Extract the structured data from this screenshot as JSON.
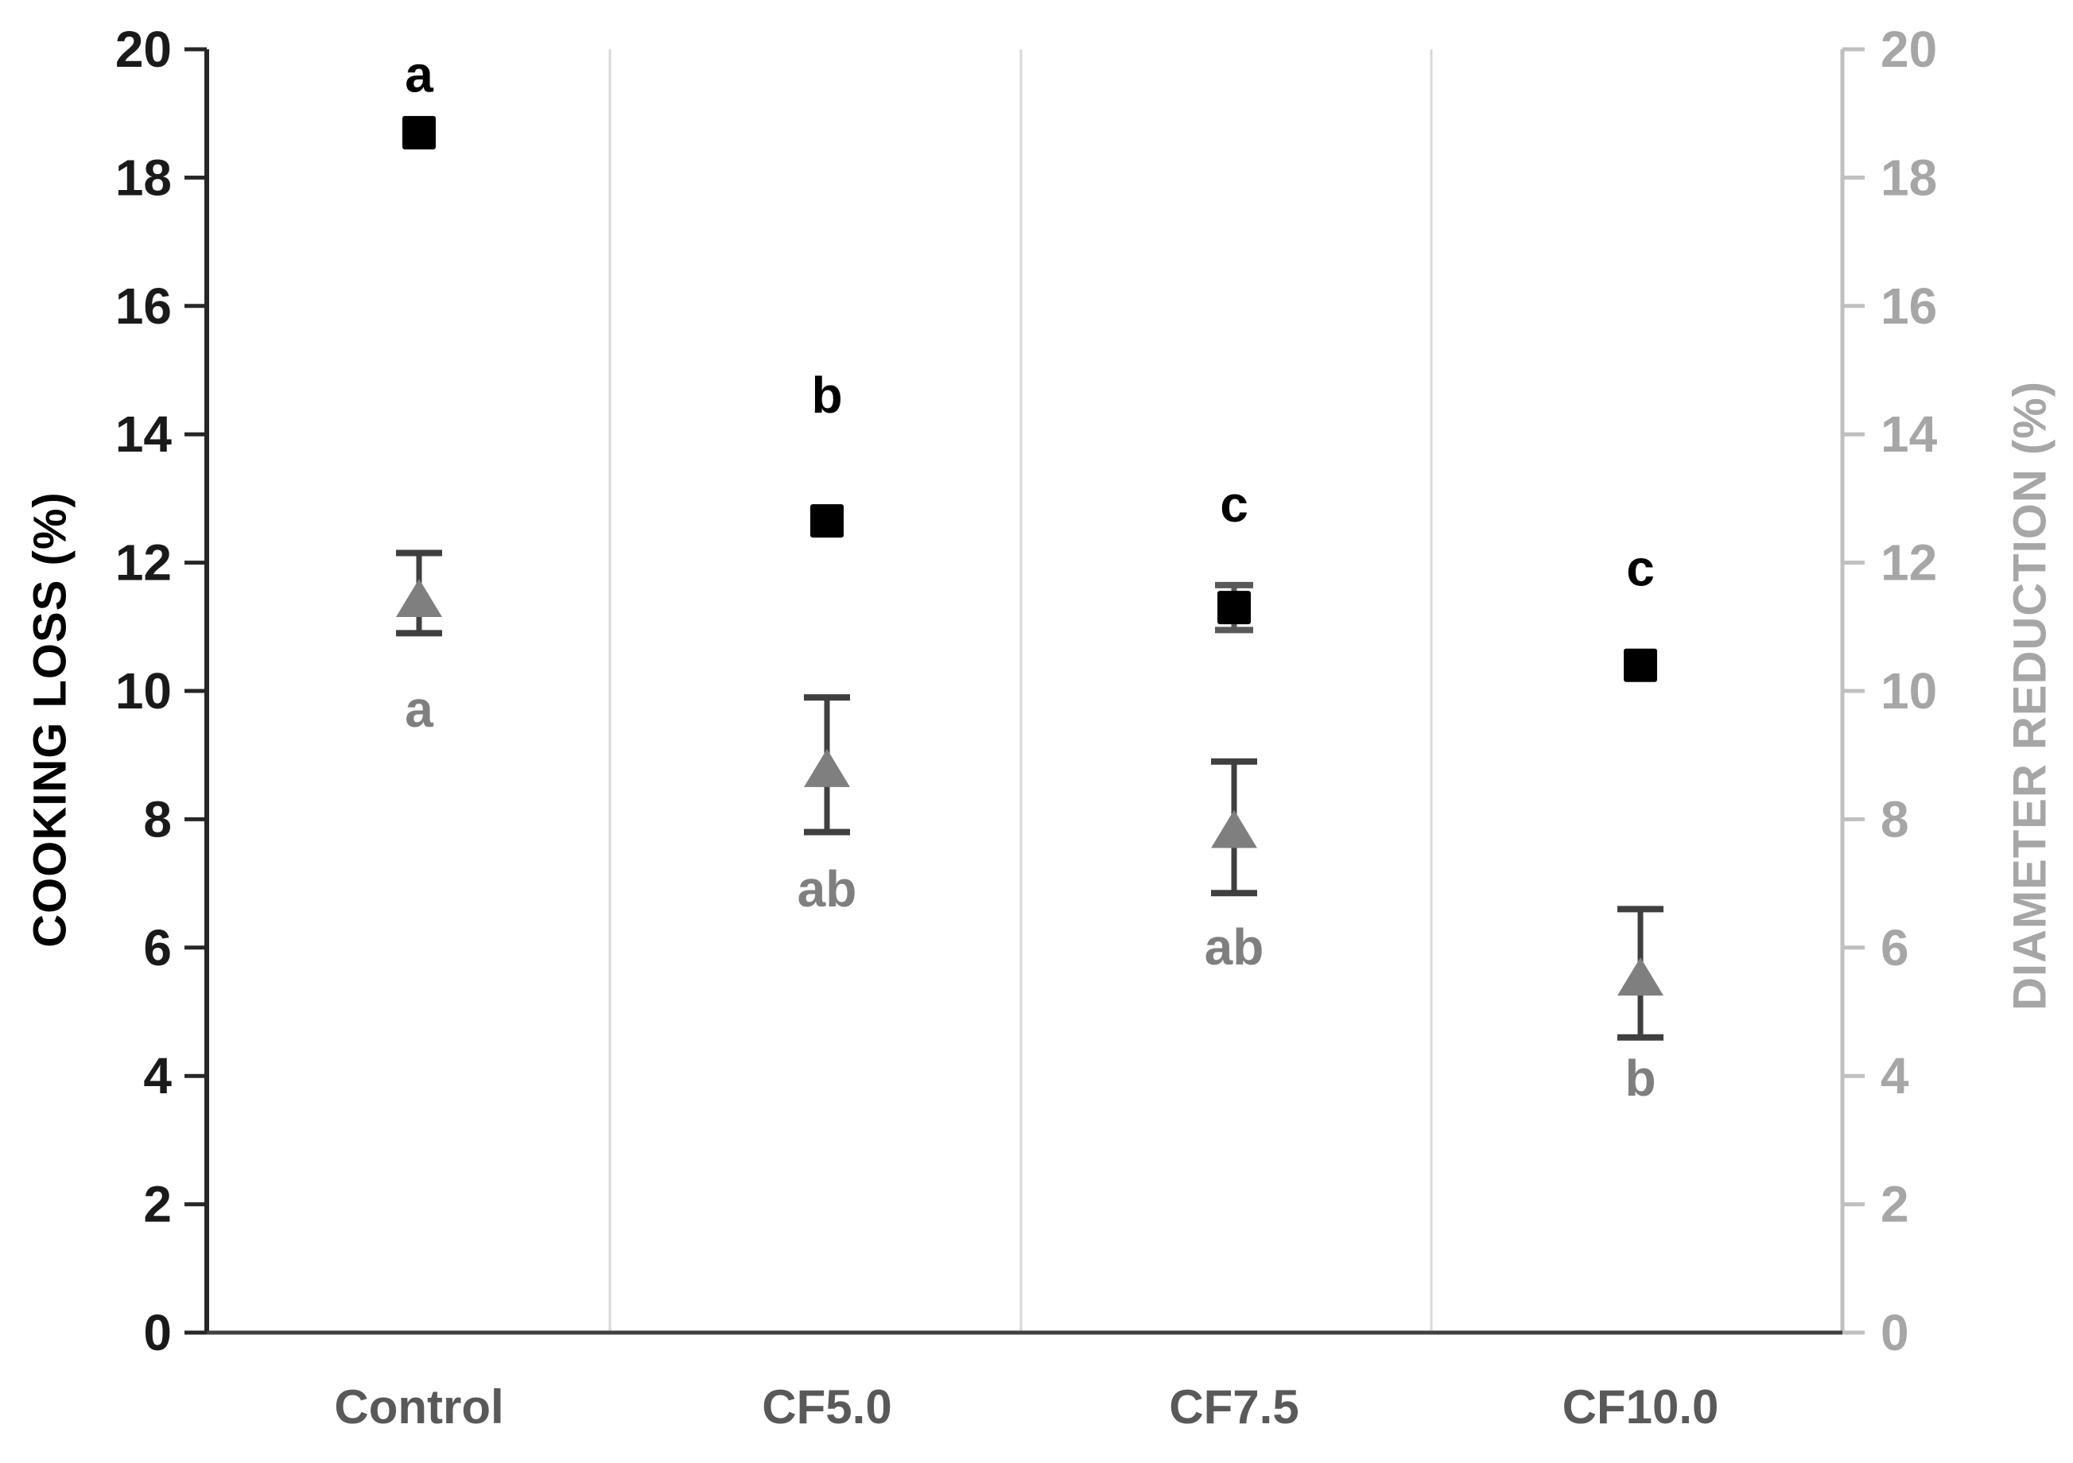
{
  "page": {
    "background": "#ffffff"
  },
  "chart_data": {
    "type": "scatter",
    "title": "",
    "categories": [
      "Control",
      "CF5.0",
      "CF7.5",
      "CF10.0"
    ],
    "category_label_color": "#595959",
    "separator_color": "#d9d9d9",
    "plot_bg": "#ffffff",
    "left_axis": {
      "title": "COOKING LOSS (%)",
      "min": 0,
      "max": 20,
      "step": 2,
      "tick_labels": [
        "0",
        "2",
        "4",
        "6",
        "8",
        "10",
        "12",
        "14",
        "16",
        "18",
        "20"
      ],
      "line_color": "#262626",
      "label_color": "#1a1a1a"
    },
    "right_axis": {
      "title": "DIAMETER REDUCTION (%)",
      "min": 0,
      "max": 20,
      "step": 2,
      "tick_labels": [
        "0",
        "2",
        "4",
        "6",
        "8",
        "10",
        "12",
        "14",
        "16",
        "18",
        "20"
      ],
      "line_color": "#bfbfbf",
      "label_color": "#a6a6a6"
    },
    "series": [
      {
        "name": "Cooking loss",
        "axis": "left",
        "marker": "square",
        "color": "#000000",
        "error_color": "#595959",
        "values": [
          18.7,
          12.65,
          11.3,
          10.4
        ],
        "error_up": [
          0,
          0,
          0.35,
          0
        ],
        "error_down": [
          0,
          0,
          0.35,
          0
        ],
        "sig_labels": [
          "a",
          "b",
          "c",
          "c"
        ],
        "sig_label_values": [
          19.6,
          14.6,
          12.9,
          11.9
        ],
        "sig_label_color": "#000000"
      },
      {
        "name": "Diameter reduction",
        "axis": "right",
        "marker": "triangle",
        "color": "#7f7f7f",
        "error_color": "#3f3f3f",
        "values": [
          11.45,
          8.8,
          7.85,
          5.55
        ],
        "error_up": [
          0.7,
          1.1,
          1.05,
          1.05
        ],
        "error_down": [
          0.55,
          1.0,
          1.0,
          0.95
        ],
        "sig_labels": [
          "a",
          "ab",
          "ab",
          "b"
        ],
        "sig_label_values": [
          9.7,
          6.9,
          6.0,
          3.95
        ],
        "sig_label_color": "#7f7f7f"
      }
    ]
  }
}
